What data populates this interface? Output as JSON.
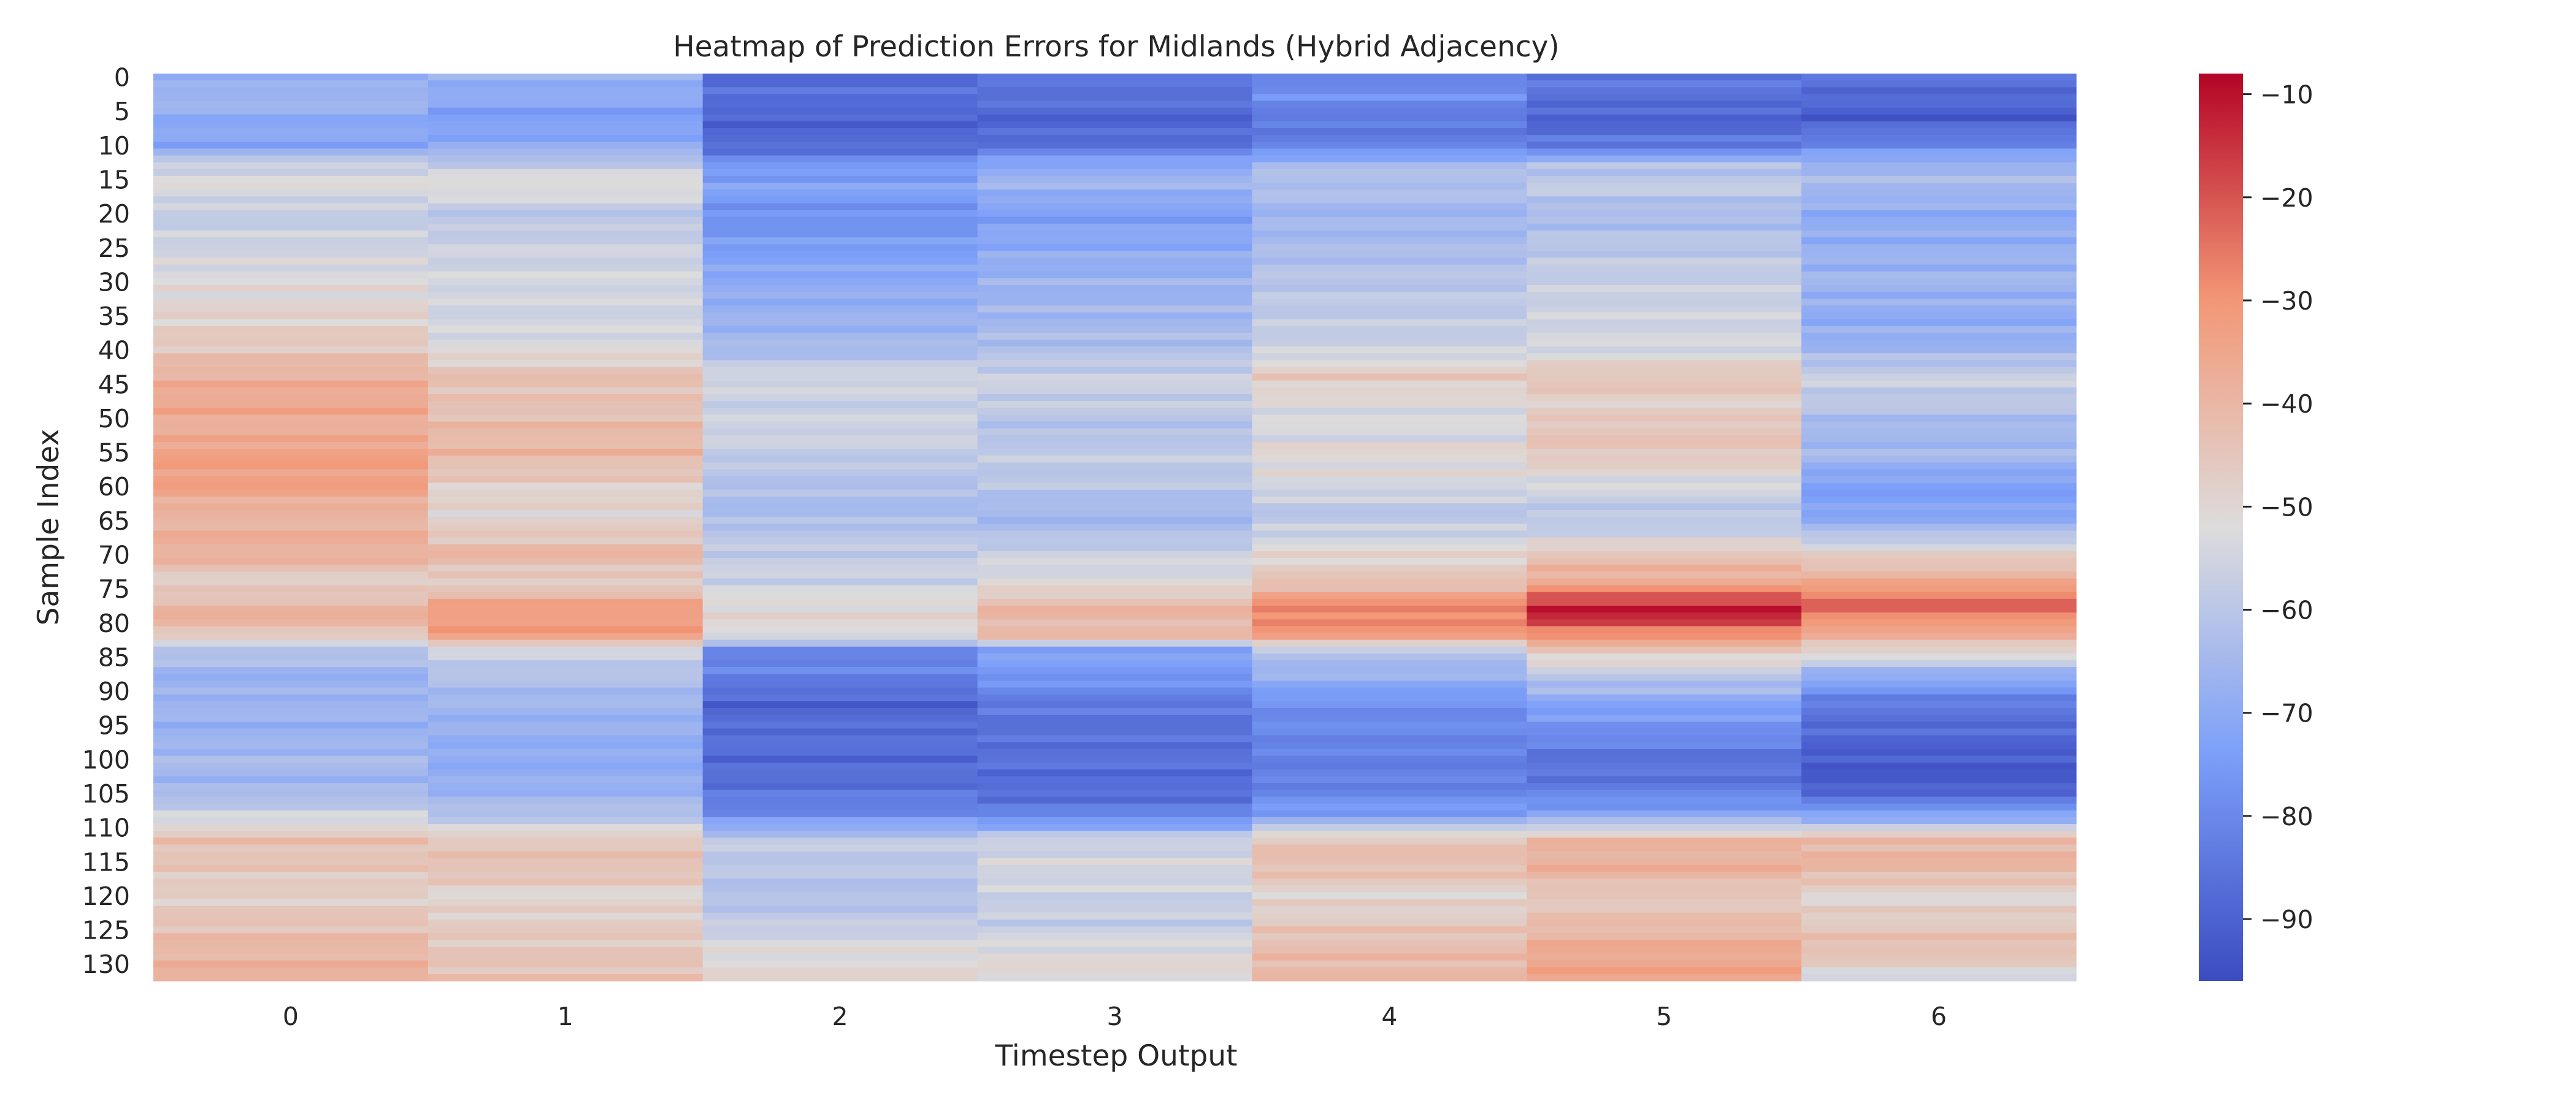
{
  "chart_data": {
    "type": "heatmap",
    "title": "Heatmap of Prediction Errors for Midlands (Hybrid Adjacency)",
    "xlabel": "Timestep Output",
    "ylabel": "Sample Index",
    "x_categories": [
      "0",
      "1",
      "2",
      "3",
      "4",
      "5",
      "6"
    ],
    "y_tick_labels": [
      "0",
      "5",
      "10",
      "15",
      "20",
      "25",
      "30",
      "35",
      "40",
      "45",
      "50",
      "55",
      "60",
      "65",
      "70",
      "75",
      "80",
      "85",
      "90",
      "95",
      "100",
      "105",
      "110",
      "115",
      "120",
      "125",
      "130"
    ],
    "row_count": 133,
    "colormap": "coolwarm",
    "vmin": -96,
    "vmax": -8,
    "colorbar_ticks": [
      -10,
      -20,
      -30,
      -40,
      -50,
      -60,
      -70,
      -80,
      -90
    ],
    "colorbar_tick_labels": [
      "−10",
      "−20",
      "−30",
      "−40",
      "−50",
      "−60",
      "−70",
      "−80",
      "−90"
    ],
    "column_profiles": [
      [
        [
          0,
          -70
        ],
        [
          3,
          -65
        ],
        [
          6,
          -70
        ],
        [
          10,
          -72
        ],
        [
          13,
          -56
        ],
        [
          16,
          -52
        ],
        [
          20,
          -58
        ],
        [
          25,
          -55
        ],
        [
          30,
          -52
        ],
        [
          36,
          -48
        ],
        [
          40,
          -45
        ],
        [
          44,
          -38
        ],
        [
          48,
          -35
        ],
        [
          52,
          -38
        ],
        [
          55,
          -33
        ],
        [
          60,
          -33
        ],
        [
          64,
          -40
        ],
        [
          67,
          -38
        ],
        [
          70,
          -38
        ],
        [
          74,
          -48
        ],
        [
          78,
          -40
        ],
        [
          80,
          -38
        ],
        [
          84,
          -60
        ],
        [
          88,
          -68
        ],
        [
          92,
          -66
        ],
        [
          96,
          -68
        ],
        [
          100,
          -64
        ],
        [
          104,
          -66
        ],
        [
          108,
          -56
        ],
        [
          112,
          -43
        ],
        [
          116,
          -45
        ],
        [
          120,
          -48
        ],
        [
          124,
          -44
        ],
        [
          128,
          -40
        ],
        [
          132,
          -38
        ]
      ],
      [
        [
          0,
          -68
        ],
        [
          3,
          -70
        ],
        [
          6,
          -74
        ],
        [
          10,
          -70
        ],
        [
          13,
          -58
        ],
        [
          16,
          -50
        ],
        [
          20,
          -60
        ],
        [
          25,
          -56
        ],
        [
          30,
          -54
        ],
        [
          36,
          -55
        ],
        [
          40,
          -52
        ],
        [
          44,
          -43
        ],
        [
          48,
          -44
        ],
        [
          52,
          -41
        ],
        [
          55,
          -40
        ],
        [
          60,
          -48
        ],
        [
          64,
          -50
        ],
        [
          67,
          -46
        ],
        [
          70,
          -40
        ],
        [
          74,
          -48
        ],
        [
          78,
          -32
        ],
        [
          82,
          -33
        ],
        [
          84,
          -55
        ],
        [
          88,
          -62
        ],
        [
          92,
          -66
        ],
        [
          96,
          -68
        ],
        [
          100,
          -70
        ],
        [
          104,
          -68
        ],
        [
          108,
          -62
        ],
        [
          112,
          -45
        ],
        [
          116,
          -43
        ],
        [
          120,
          -50
        ],
        [
          124,
          -47
        ],
        [
          128,
          -45
        ],
        [
          132,
          -43
        ]
      ],
      [
        [
          0,
          -88
        ],
        [
          3,
          -86
        ],
        [
          6,
          -90
        ],
        [
          10,
          -88
        ],
        [
          13,
          -76
        ],
        [
          16,
          -72
        ],
        [
          20,
          -78
        ],
        [
          25,
          -74
        ],
        [
          30,
          -70
        ],
        [
          36,
          -67
        ],
        [
          40,
          -64
        ],
        [
          44,
          -54
        ],
        [
          48,
          -57
        ],
        [
          52,
          -55
        ],
        [
          55,
          -58
        ],
        [
          60,
          -62
        ],
        [
          64,
          -64
        ],
        [
          67,
          -60
        ],
        [
          70,
          -58
        ],
        [
          74,
          -56
        ],
        [
          78,
          -50
        ],
        [
          82,
          -52
        ],
        [
          84,
          -80
        ],
        [
          88,
          -82
        ],
        [
          92,
          -90
        ],
        [
          96,
          -86
        ],
        [
          100,
          -88
        ],
        [
          104,
          -86
        ],
        [
          108,
          -80
        ],
        [
          112,
          -58
        ],
        [
          116,
          -60
        ],
        [
          120,
          -62
        ],
        [
          124,
          -58
        ],
        [
          128,
          -52
        ],
        [
          132,
          -50
        ]
      ],
      [
        [
          0,
          -86
        ],
        [
          3,
          -85
        ],
        [
          6,
          -90
        ],
        [
          10,
          -86
        ],
        [
          13,
          -70
        ],
        [
          16,
          -66
        ],
        [
          20,
          -74
        ],
        [
          25,
          -70
        ],
        [
          30,
          -67
        ],
        [
          36,
          -65
        ],
        [
          40,
          -62
        ],
        [
          44,
          -56
        ],
        [
          48,
          -58
        ],
        [
          52,
          -62
        ],
        [
          55,
          -58
        ],
        [
          60,
          -60
        ],
        [
          64,
          -66
        ],
        [
          67,
          -62
        ],
        [
          70,
          -56
        ],
        [
          74,
          -52
        ],
        [
          78,
          -40
        ],
        [
          82,
          -42
        ],
        [
          84,
          -72
        ],
        [
          88,
          -76
        ],
        [
          92,
          -84
        ],
        [
          96,
          -86
        ],
        [
          100,
          -86
        ],
        [
          104,
          -88
        ],
        [
          108,
          -82
        ],
        [
          112,
          -56
        ],
        [
          116,
          -54
        ],
        [
          120,
          -56
        ],
        [
          124,
          -58
        ],
        [
          128,
          -52
        ],
        [
          132,
          -50
        ]
      ],
      [
        [
          0,
          -80
        ],
        [
          3,
          -78
        ],
        [
          6,
          -84
        ],
        [
          10,
          -82
        ],
        [
          13,
          -64
        ],
        [
          16,
          -62
        ],
        [
          20,
          -66
        ],
        [
          25,
          -64
        ],
        [
          30,
          -60
        ],
        [
          36,
          -58
        ],
        [
          40,
          -56
        ],
        [
          44,
          -46
        ],
        [
          48,
          -52
        ],
        [
          52,
          -54
        ],
        [
          55,
          -50
        ],
        [
          60,
          -54
        ],
        [
          64,
          -60
        ],
        [
          67,
          -56
        ],
        [
          70,
          -50
        ],
        [
          74,
          -44
        ],
        [
          78,
          -26
        ],
        [
          82,
          -32
        ],
        [
          84,
          -60
        ],
        [
          88,
          -68
        ],
        [
          92,
          -78
        ],
        [
          96,
          -80
        ],
        [
          100,
          -82
        ],
        [
          104,
          -82
        ],
        [
          108,
          -74
        ],
        [
          112,
          -44
        ],
        [
          116,
          -42
        ],
        [
          120,
          -50
        ],
        [
          124,
          -46
        ],
        [
          128,
          -42
        ],
        [
          132,
          -40
        ]
      ],
      [
        [
          0,
          -84
        ],
        [
          3,
          -86
        ],
        [
          6,
          -90
        ],
        [
          10,
          -84
        ],
        [
          13,
          -62
        ],
        [
          16,
          -58
        ],
        [
          20,
          -64
        ],
        [
          25,
          -60
        ],
        [
          30,
          -57
        ],
        [
          36,
          -55
        ],
        [
          40,
          -54
        ],
        [
          44,
          -44
        ],
        [
          48,
          -48
        ],
        [
          52,
          -44
        ],
        [
          55,
          -45
        ],
        [
          60,
          -54
        ],
        [
          64,
          -60
        ],
        [
          67,
          -56
        ],
        [
          70,
          -44
        ],
        [
          74,
          -36
        ],
        [
          78,
          -10
        ],
        [
          80,
          -18
        ],
        [
          84,
          -44
        ],
        [
          88,
          -60
        ],
        [
          92,
          -72
        ],
        [
          96,
          -78
        ],
        [
          100,
          -86
        ],
        [
          104,
          -84
        ],
        [
          108,
          -72
        ],
        [
          112,
          -40
        ],
        [
          116,
          -38
        ],
        [
          120,
          -46
        ],
        [
          124,
          -42
        ],
        [
          128,
          -36
        ],
        [
          132,
          -34
        ]
      ],
      [
        [
          0,
          -86
        ],
        [
          3,
          -88
        ],
        [
          6,
          -92
        ],
        [
          10,
          -80
        ],
        [
          13,
          -66
        ],
        [
          16,
          -64
        ],
        [
          20,
          -70
        ],
        [
          25,
          -68
        ],
        [
          30,
          -66
        ],
        [
          36,
          -70
        ],
        [
          40,
          -66
        ],
        [
          44,
          -56
        ],
        [
          48,
          -60
        ],
        [
          52,
          -66
        ],
        [
          55,
          -64
        ],
        [
          60,
          -74
        ],
        [
          64,
          -72
        ],
        [
          67,
          -62
        ],
        [
          70,
          -48
        ],
        [
          74,
          -36
        ],
        [
          77,
          -22
        ],
        [
          80,
          -30
        ],
        [
          84,
          -48
        ],
        [
          88,
          -70
        ],
        [
          92,
          -84
        ],
        [
          96,
          -88
        ],
        [
          100,
          -92
        ],
        [
          104,
          -92
        ],
        [
          108,
          -74
        ],
        [
          112,
          -40
        ],
        [
          116,
          -40
        ],
        [
          120,
          -50
        ],
        [
          124,
          -46
        ],
        [
          128,
          -42
        ],
        [
          132,
          -54
        ]
      ]
    ]
  }
}
